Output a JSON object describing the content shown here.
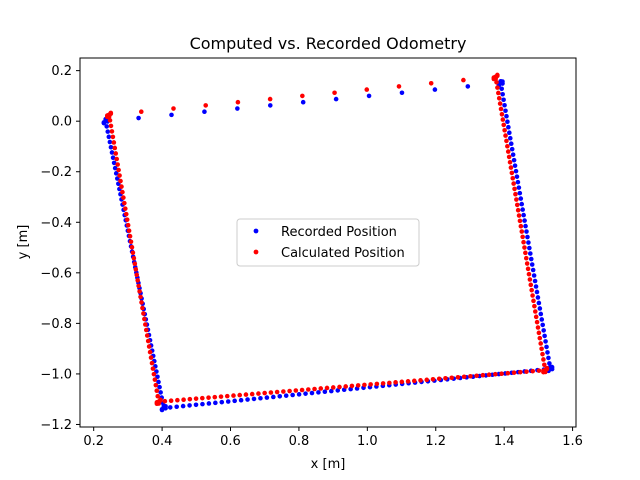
{
  "chart_data": {
    "type": "scatter",
    "title": "Computed vs. Recorded Odometry",
    "xlabel": "x [m]",
    "ylabel": "y [m]",
    "xlim": [
      0.16,
      1.61
    ],
    "ylim": [
      -1.21,
      0.25
    ],
    "xticks": [
      0.2,
      0.4,
      0.6,
      0.8,
      1.0,
      1.2,
      1.4,
      1.6
    ],
    "xtick_labels": [
      "0.2",
      "0.4",
      "0.6",
      "0.8",
      "1.0",
      "1.2",
      "1.4",
      "1.6"
    ],
    "yticks": [
      -1.2,
      -1.0,
      -0.8,
      -0.6,
      -0.4,
      -0.2,
      0.0,
      0.2
    ],
    "ytick_labels": [
      "−1.2",
      "−1.0",
      "−0.8",
      "−0.6",
      "−0.4",
      "−0.2",
      "0.0",
      "0.2"
    ],
    "grid": false,
    "legend": {
      "placement": "center"
    },
    "series": [
      {
        "name": "Recorded Position",
        "color": "#0000ff",
        "corners": [
          [
            0.235,
            0.0
          ],
          [
            1.39,
            0.15
          ],
          [
            1.535,
            -0.98
          ],
          [
            0.405,
            -1.135
          ],
          [
            0.235,
            0.0
          ]
        ]
      },
      {
        "name": "Calculated Position",
        "color": "#ff0000",
        "corners": [
          [
            0.245,
            0.025
          ],
          [
            1.375,
            0.175
          ],
          [
            1.52,
            -0.985
          ],
          [
            0.39,
            -1.11
          ],
          [
            0.245,
            0.025
          ]
        ]
      }
    ]
  }
}
